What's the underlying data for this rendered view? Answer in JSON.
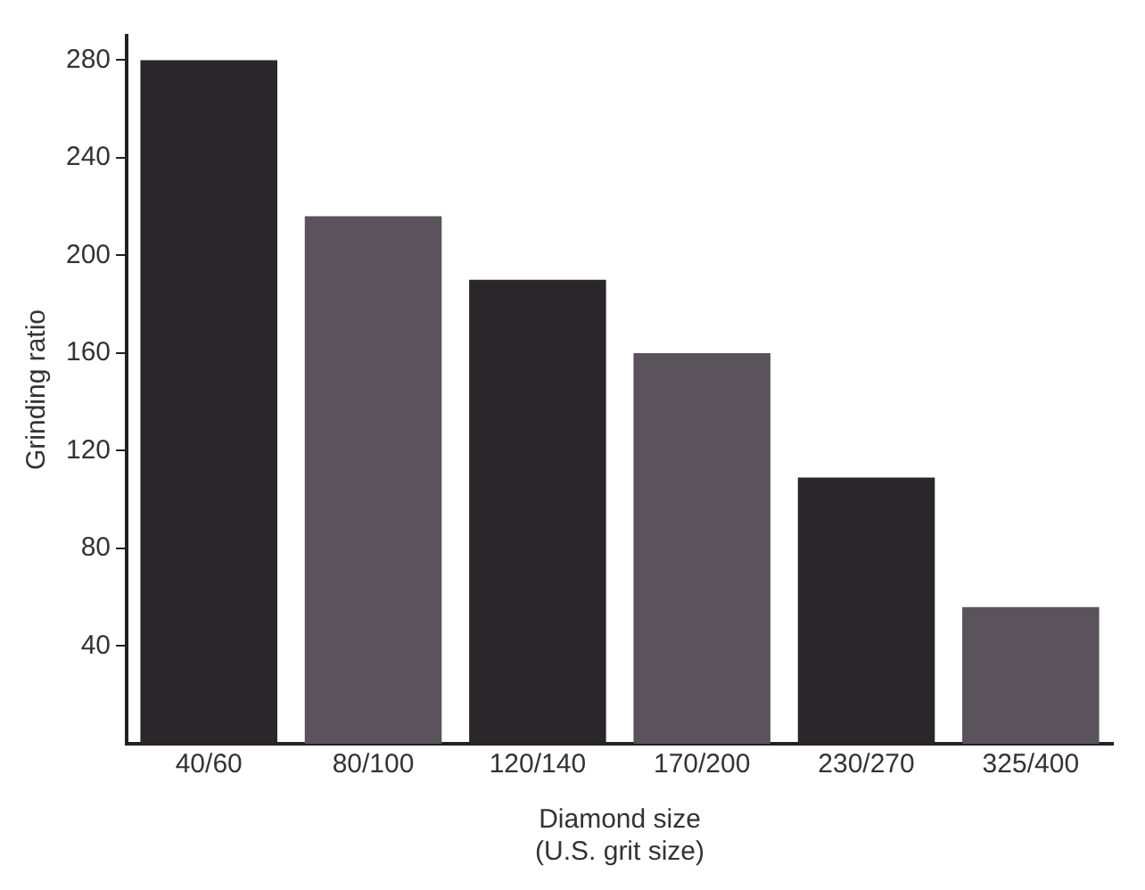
{
  "chart_data": {
    "type": "bar",
    "xlabel": "Diamond size\n(U.S. grit size)",
    "ylabel": "Grinding ratio",
    "categories": [
      "40/60",
      "80/100",
      "120/140",
      "170/200",
      "230/270",
      "325/400"
    ],
    "values": [
      280,
      216,
      190,
      160,
      109,
      56
    ],
    "colors": [
      "#2a2629",
      "#5a535c",
      "#2a2629",
      "#5a535c",
      "#2a2629",
      "#5a535c"
    ],
    "ylim": [
      0,
      290
    ],
    "yticks": [
      40,
      80,
      120,
      160,
      200,
      240,
      280
    ],
    "grid": false,
    "legend": false
  }
}
